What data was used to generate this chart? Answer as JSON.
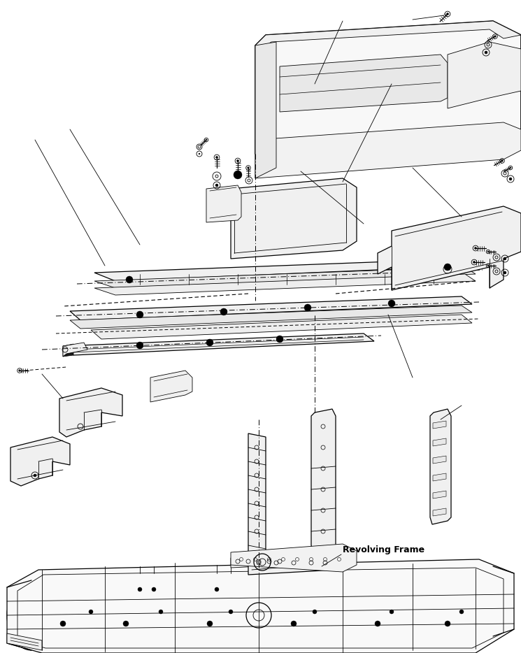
{
  "background_color": "#ffffff",
  "line_color": "#000000",
  "label_text": "Revolving Frame",
  "label_fontsize": 9,
  "label_fontweight": "bold",
  "figsize": [
    7.45,
    9.34
  ],
  "dpi": 100,
  "lw_thin": 0.6,
  "lw_med": 0.9,
  "lw_thick": 1.2
}
